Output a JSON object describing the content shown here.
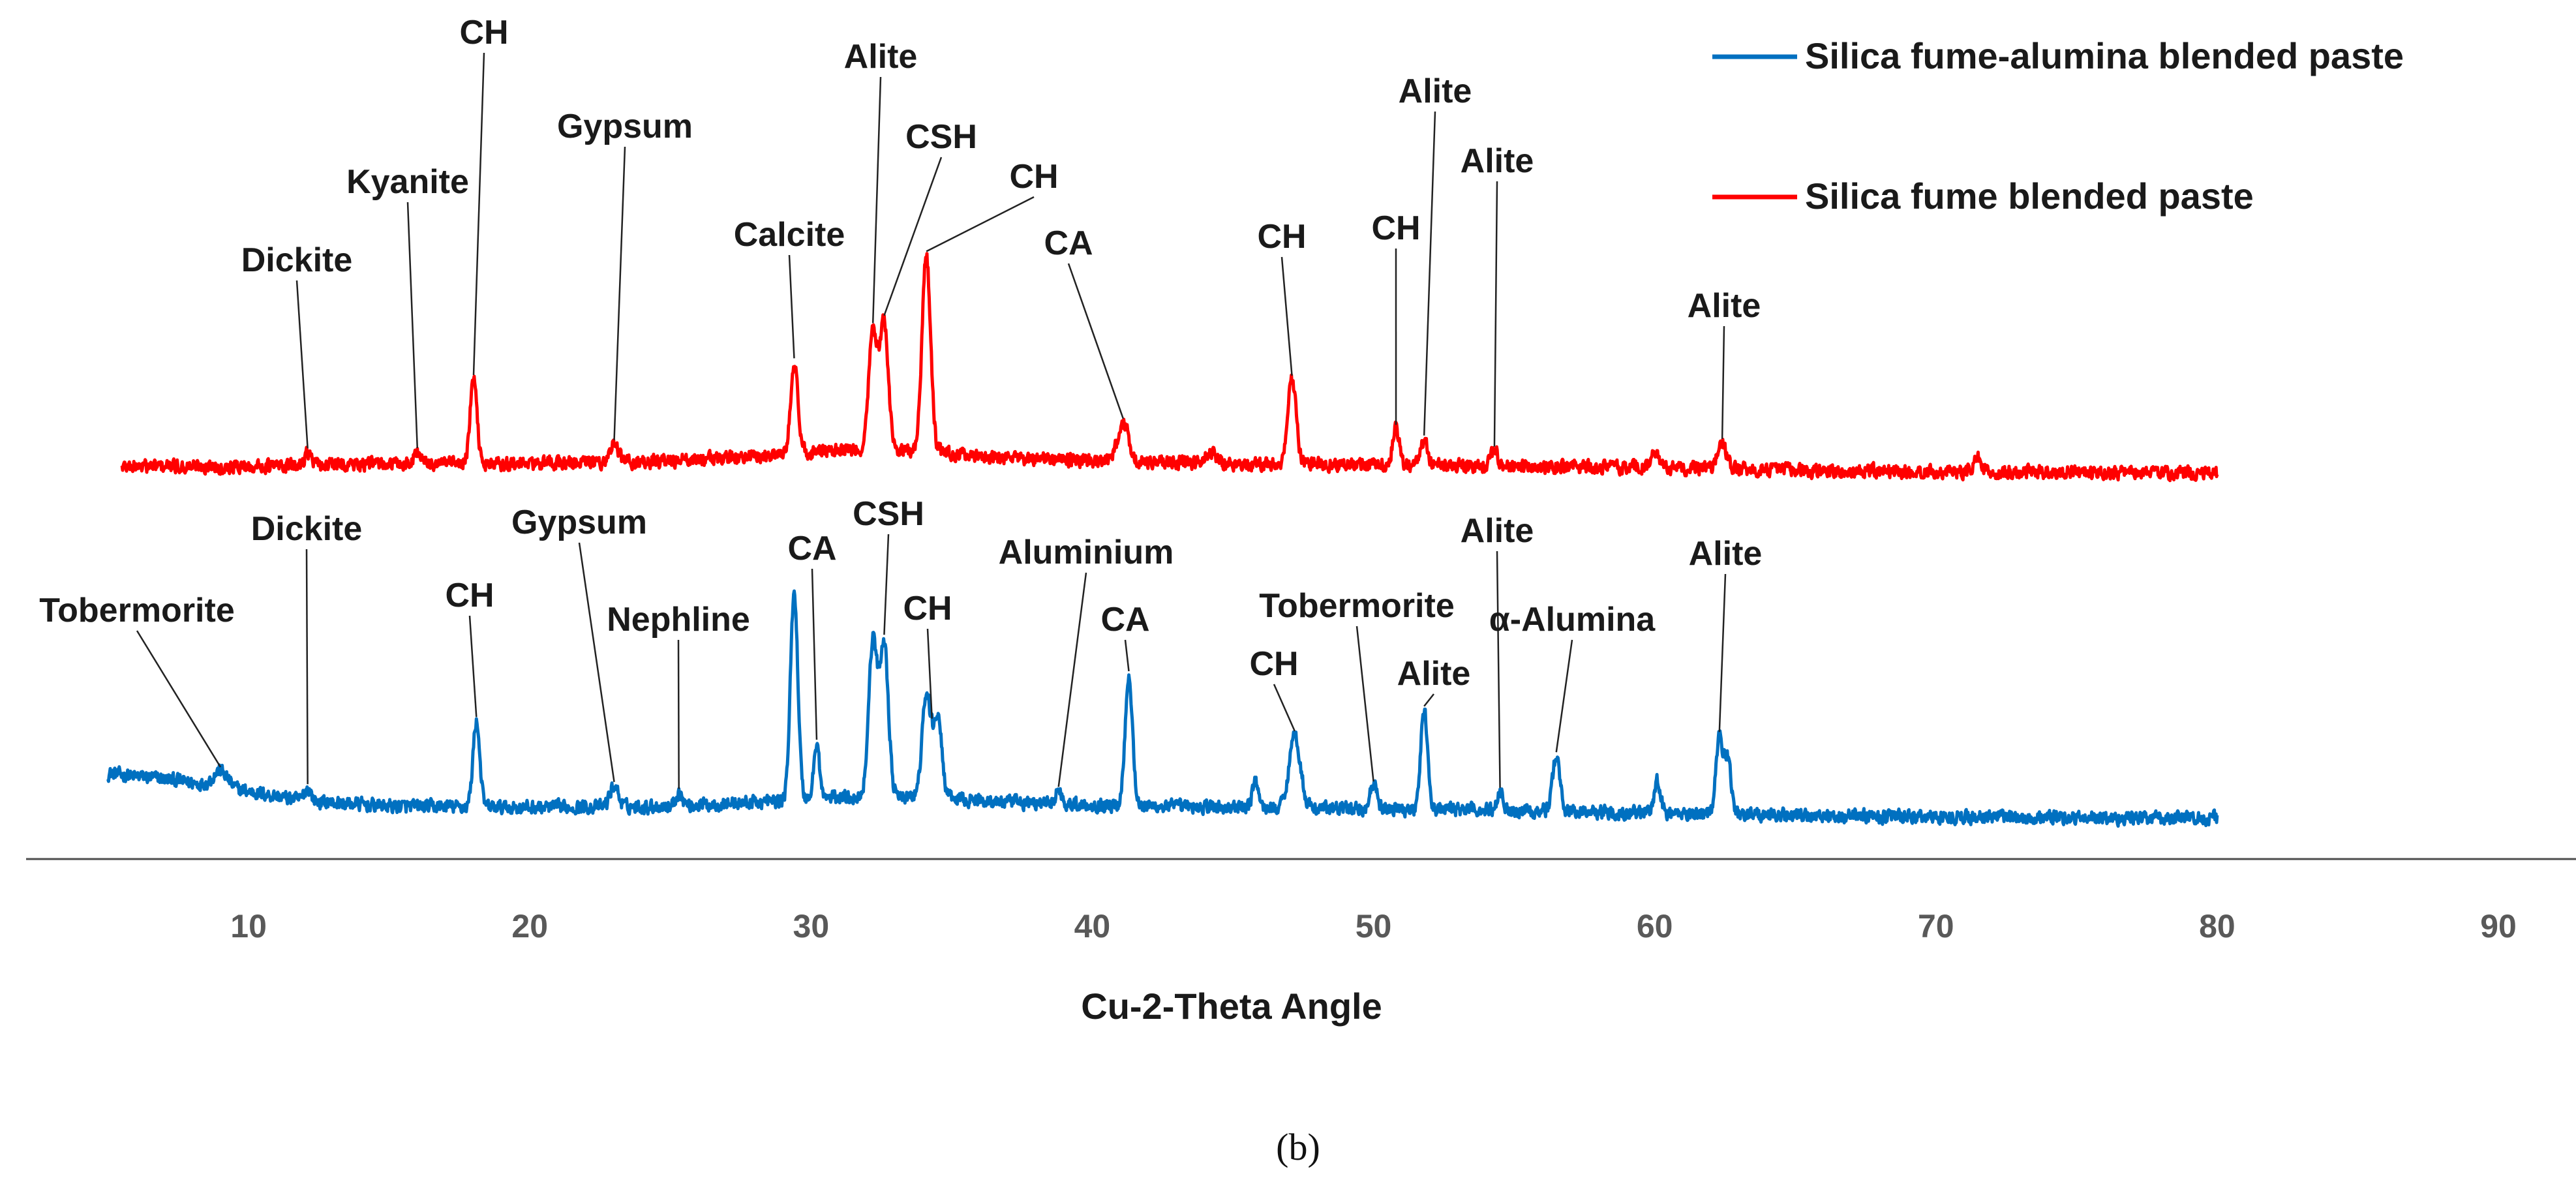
{
  "chart_data": {
    "type": "line",
    "xlabel": "Cu-2-Theta Angle",
    "ylabel": "",
    "xlim": [
      0,
      90
    ],
    "xticks": [
      10,
      20,
      30,
      40,
      50,
      60,
      70,
      80,
      90
    ],
    "grid": false,
    "legend_position": "top-right",
    "caption": "(b)",
    "series": [
      {
        "name": "Silica fume-alumina blended paste",
        "color": "#0070C0",
        "x_range": [
          5,
          80
        ],
        "baseline": [
          [
            5,
            38
          ],
          [
            7,
            34
          ],
          [
            9,
            28
          ],
          [
            12,
            17
          ],
          [
            15,
            13
          ],
          [
            20,
            12
          ],
          [
            25,
            13
          ],
          [
            28,
            16
          ],
          [
            31,
            20
          ],
          [
            34,
            20
          ],
          [
            37,
            16
          ],
          [
            40,
            14
          ],
          [
            45,
            12
          ],
          [
            50,
            11
          ],
          [
            55,
            10
          ],
          [
            60,
            8
          ],
          [
            65,
            6
          ],
          [
            70,
            5
          ],
          [
            75,
            4
          ],
          [
            80,
            4
          ]
        ],
        "peaks": [
          {
            "x": 9.0,
            "h": 12,
            "w": 0.25
          },
          {
            "x": 12.1,
            "h": 10,
            "w": 0.12
          },
          {
            "x": 18.1,
            "h": 66,
            "w": 0.12
          },
          {
            "x": 23.0,
            "h": 16,
            "w": 0.15
          },
          {
            "x": 25.3,
            "h": 10,
            "w": 0.12
          },
          {
            "x": 29.4,
            "h": 160,
            "w": 0.13
          },
          {
            "x": 30.2,
            "h": 42,
            "w": 0.1
          },
          {
            "x": 32.2,
            "h": 120,
            "w": 0.15
          },
          {
            "x": 32.6,
            "h": 118,
            "w": 0.15
          },
          {
            "x": 34.1,
            "h": 78,
            "w": 0.15
          },
          {
            "x": 34.5,
            "h": 62,
            "w": 0.15
          },
          {
            "x": 38.8,
            "h": 10,
            "w": 0.12
          },
          {
            "x": 41.3,
            "h": 100,
            "w": 0.13
          },
          {
            "x": 45.8,
            "h": 22,
            "w": 0.1
          },
          {
            "x": 47.2,
            "h": 56,
            "w": 0.2
          },
          {
            "x": 50.0,
            "h": 18,
            "w": 0.12
          },
          {
            "x": 51.8,
            "h": 76,
            "w": 0.12
          },
          {
            "x": 54.5,
            "h": 14,
            "w": 0.1
          },
          {
            "x": 56.5,
            "h": 42,
            "w": 0.13
          },
          {
            "x": 60.1,
            "h": 26,
            "w": 0.1
          },
          {
            "x": 62.3,
            "h": 58,
            "w": 0.12
          },
          {
            "x": 62.6,
            "h": 42,
            "w": 0.12
          }
        ]
      },
      {
        "name": "Silica fume blended paste",
        "color": "#FF0000",
        "x_range": [
          5.5,
          80
        ],
        "baseline": [
          [
            5.5,
            10
          ],
          [
            10,
            10
          ],
          [
            15,
            12
          ],
          [
            20,
            12
          ],
          [
            25,
            14
          ],
          [
            28,
            18
          ],
          [
            31,
            22
          ],
          [
            34,
            22
          ],
          [
            37,
            16
          ],
          [
            40,
            14
          ],
          [
            45,
            12
          ],
          [
            50,
            11
          ],
          [
            55,
            10
          ],
          [
            60,
            9
          ],
          [
            65,
            7
          ],
          [
            70,
            6
          ],
          [
            75,
            5
          ],
          [
            80,
            5
          ]
        ],
        "peaks": [
          {
            "x": 12.1,
            "h": 10,
            "w": 0.12
          },
          {
            "x": 16.0,
            "h": 9,
            "w": 0.12
          },
          {
            "x": 18.0,
            "h": 65,
            "w": 0.12
          },
          {
            "x": 23.0,
            "h": 14,
            "w": 0.15
          },
          {
            "x": 29.4,
            "h": 70,
            "w": 0.13
          },
          {
            "x": 32.2,
            "h": 92,
            "w": 0.15
          },
          {
            "x": 32.6,
            "h": 98,
            "w": 0.15
          },
          {
            "x": 34.1,
            "h": 150,
            "w": 0.15
          },
          {
            "x": 41.1,
            "h": 30,
            "w": 0.2
          },
          {
            "x": 44.2,
            "h": 8,
            "w": 0.2
          },
          {
            "x": 47.1,
            "h": 65,
            "w": 0.15
          },
          {
            "x": 50.8,
            "h": 28,
            "w": 0.12
          },
          {
            "x": 51.8,
            "h": 20,
            "w": 0.12
          },
          {
            "x": 54.3,
            "h": 12,
            "w": 0.12
          },
          {
            "x": 60.0,
            "h": 10,
            "w": 0.15
          },
          {
            "x": 62.4,
            "h": 20,
            "w": 0.15
          },
          {
            "x": 71.5,
            "h": 10,
            "w": 0.15
          }
        ]
      }
    ],
    "annotations": [
      {
        "label": "Dickite",
        "series": 1,
        "x": 12.1
      },
      {
        "label": "Kyanite",
        "series": 1,
        "x": 16.0
      },
      {
        "label": "CH",
        "series": 1,
        "x": 18.0
      },
      {
        "label": "Gypsum",
        "series": 1,
        "x": 23.0
      },
      {
        "label": "Calcite",
        "series": 1,
        "x": 29.4
      },
      {
        "label": "Alite",
        "series": 1,
        "x": 32.2
      },
      {
        "label": "CSH",
        "series": 1,
        "x": 32.6
      },
      {
        "label": "CH",
        "series": 1,
        "x": 34.1
      },
      {
        "label": "CA",
        "series": 1,
        "x": 41.1
      },
      {
        "label": "CH",
        "series": 1,
        "x": 47.1
      },
      {
        "label": "CH",
        "series": 1,
        "x": 50.8
      },
      {
        "label": "Alite",
        "series": 1,
        "x": 51.8
      },
      {
        "label": "Alite",
        "series": 1,
        "x": 54.3
      },
      {
        "label": "Alite",
        "series": 1,
        "x": 62.4
      },
      {
        "label": "Tobermorite",
        "series": 0,
        "x": 9.0
      },
      {
        "label": "Dickite",
        "series": 0,
        "x": 12.1
      },
      {
        "label": "CH",
        "series": 0,
        "x": 18.1
      },
      {
        "label": "Gypsum",
        "series": 0,
        "x": 23.0
      },
      {
        "label": "Nephline",
        "series": 0,
        "x": 25.3
      },
      {
        "label": "CA",
        "series": 0,
        "x": 30.2
      },
      {
        "label": "CSH",
        "series": 0,
        "x": 32.6
      },
      {
        "label": "CH",
        "series": 0,
        "x": 34.3
      },
      {
        "label": "Aluminium",
        "series": 0,
        "x": 38.8
      },
      {
        "label": "CA",
        "series": 0,
        "x": 41.3
      },
      {
        "label": "CH",
        "series": 0,
        "x": 47.2
      },
      {
        "label": "Tobermorite",
        "series": 0,
        "x": 50.0
      },
      {
        "label": "Alite",
        "series": 0,
        "x": 51.8
      },
      {
        "label": "Alite",
        "series": 0,
        "x": 54.5
      },
      {
        "label": "α-Alumina",
        "series": 0,
        "x": 56.5
      },
      {
        "label": "Alite",
        "series": 0,
        "x": 62.3
      }
    ]
  }
}
